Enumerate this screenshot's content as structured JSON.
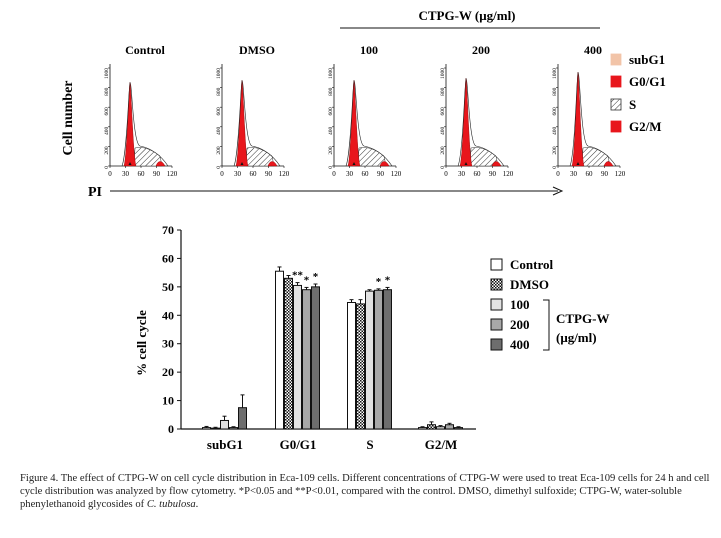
{
  "figure": {
    "caption_prefix": "Figure 4. The effect of CTPG-W on cell cycle distribution in Eca-109 cells. Different concentrations of CTPG-W were used to treat Eca-109 cells for 24 h and cell cycle distribution was analyzed by flow cytometry. ",
    "caption_sig1": "*P<0.05 and ",
    "caption_sig2": "**P<0.01, compared with the control. DMSO, dimethyl sulfoxide; CTPG-W, water-soluble phenylethanoid glycosides of ",
    "caption_species": "C. tubulosa",
    "caption_end": "."
  },
  "histograms": {
    "group_label": "CTPG-W (μg/ml)",
    "ylabel": "Cell number",
    "xlabel": "PI",
    "x_ticks": [
      "0",
      "30",
      "60",
      "90",
      "120"
    ],
    "y_ticks": [
      "0",
      "200",
      "400",
      "600",
      "800",
      "1000"
    ],
    "panels": [
      "Control",
      "DMSO",
      "100",
      "200",
      "400"
    ],
    "legend": [
      "subG1",
      "G0/G1",
      "S",
      "G2/M"
    ]
  },
  "chart_data": {
    "type": "bar",
    "ylabel": "% cell cycle",
    "ylim": [
      0,
      70
    ],
    "yticks": [
      "0",
      "10",
      "20",
      "30",
      "40",
      "50",
      "60",
      "70"
    ],
    "categories": [
      "subG1",
      "G0/G1",
      "S",
      "G2/M"
    ],
    "series": [
      {
        "name": "Control",
        "values": [
          0.5,
          55.5,
          44.5,
          0.5
        ],
        "errors": [
          0.4,
          1.5,
          1.0,
          0.3
        ]
      },
      {
        "name": "DMSO",
        "values": [
          0.3,
          53.0,
          44.0,
          1.5
        ],
        "errors": [
          0.3,
          1.0,
          1.5,
          1.0
        ]
      },
      {
        "name": "100",
        "values": [
          3.0,
          50.5,
          48.5,
          0.8
        ],
        "errors": [
          1.5,
          1.0,
          0.5,
          0.4
        ]
      },
      {
        "name": "200",
        "values": [
          0.5,
          49.0,
          48.8,
          1.5
        ],
        "errors": [
          0.3,
          0.8,
          0.5,
          0.5
        ]
      },
      {
        "name": "400",
        "values": [
          7.5,
          50.0,
          49.0,
          0.5
        ],
        "errors": [
          4.5,
          1.0,
          0.8,
          0.3
        ]
      }
    ],
    "significance": [
      [
        "",
        "",
        "",
        ""
      ],
      [
        "",
        "",
        "",
        ""
      ],
      [
        "",
        "**",
        "",
        ""
      ],
      [
        "",
        "*",
        "*",
        ""
      ],
      [
        "",
        "*",
        "*",
        ""
      ]
    ],
    "legend_group_label": "CTPG-W",
    "legend_group_unit": "(μg/ml)"
  }
}
